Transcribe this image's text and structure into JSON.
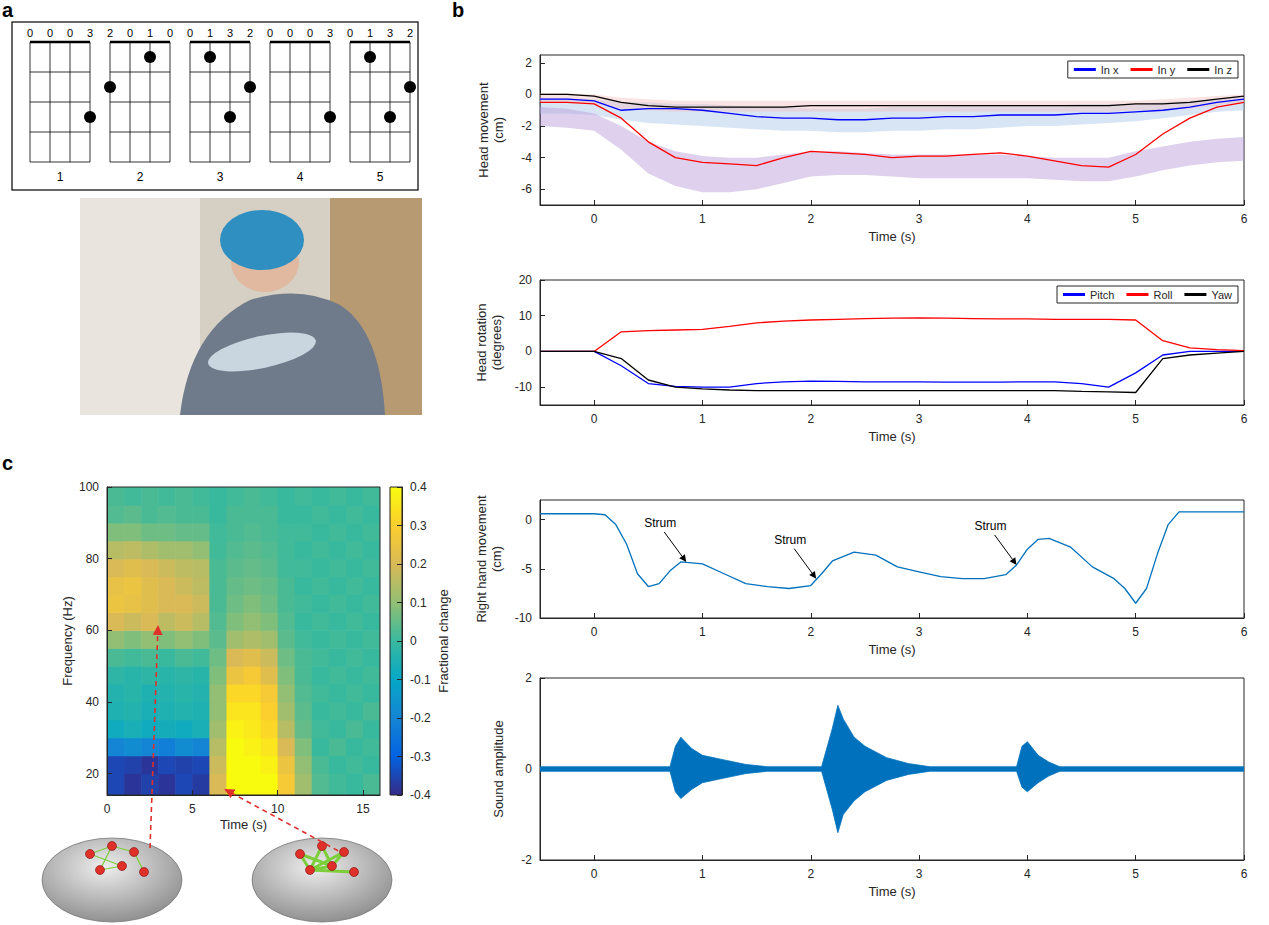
{
  "panel_a": {
    "letter": "a",
    "chords": [
      {
        "label": 1,
        "fret_numbers": [
          0,
          0,
          0,
          3
        ],
        "dots": [
          [
            4,
            3
          ]
        ]
      },
      {
        "label": 2,
        "fret_numbers": [
          2,
          0,
          1,
          0
        ],
        "dots": [
          [
            1,
            2
          ],
          [
            3,
            1
          ]
        ]
      },
      {
        "label": 3,
        "fret_numbers": [
          0,
          1,
          3,
          2
        ],
        "dots": [
          [
            2,
            1
          ],
          [
            3,
            3
          ],
          [
            4,
            2
          ]
        ]
      },
      {
        "label": 4,
        "fret_numbers": [
          0,
          0,
          0,
          3
        ],
        "dots": [
          [
            4,
            3
          ]
        ]
      },
      {
        "label": 5,
        "fret_numbers": [
          0,
          1,
          3,
          2
        ],
        "dots": [
          [
            2,
            1
          ],
          [
            3,
            3
          ],
          [
            4,
            2
          ]
        ]
      }
    ]
  },
  "panel_b": {
    "letter": "b"
  },
  "panel_c": {
    "letter": "c"
  },
  "chart_data": [
    {
      "type": "line",
      "x_label": "Time (s)",
      "y_label": "Head movement (cm)",
      "x": [
        -0.5,
        -0.25,
        0,
        0.25,
        0.5,
        0.75,
        1,
        1.25,
        1.5,
        1.75,
        2,
        2.25,
        2.5,
        2.75,
        3,
        3.25,
        3.5,
        3.75,
        4,
        4.25,
        4.5,
        4.75,
        5,
        5.25,
        5.5,
        5.75,
        6
      ],
      "xlim": [
        -0.5,
        6
      ],
      "xticks": [
        0,
        1,
        2,
        3,
        4,
        5,
        6
      ],
      "ylim": [
        -7,
        2.5
      ],
      "yticks": [
        -6,
        -4,
        -2,
        0,
        2
      ],
      "legend": "upper right",
      "series": [
        {
          "type": "band",
          "color": "#a9c6e8",
          "lower": [
            -1.2,
            -1.2,
            -1.3,
            -1.6,
            -1.8,
            -1.9,
            -2.0,
            -2.1,
            -2.2,
            -2.3,
            -2.3,
            -2.4,
            -2.4,
            -2.3,
            -2.3,
            -2.2,
            -2.2,
            -2.1,
            -2.0,
            -2.0,
            -1.9,
            -1.8,
            -1.7,
            -1.5,
            -1.3,
            -1.1,
            -1.0
          ],
          "upper": [
            -0.2,
            -0.2,
            -0.3,
            -0.5,
            -0.5,
            -0.6,
            -0.6,
            -0.7,
            -0.8,
            -0.8,
            -0.9,
            -0.9,
            -0.9,
            -0.8,
            -0.8,
            -0.8,
            -0.7,
            -0.7,
            -0.7,
            -0.7,
            -0.6,
            -0.6,
            -0.6,
            -0.5,
            -0.4,
            -0.3,
            -0.2
          ]
        },
        {
          "type": "band",
          "color": "#b99ad6",
          "lower": [
            -2.0,
            -2.1,
            -2.3,
            -3.5,
            -5.0,
            -5.8,
            -6.2,
            -6.2,
            -6.0,
            -5.6,
            -5.2,
            -5.1,
            -5.1,
            -5.2,
            -5.3,
            -5.3,
            -5.3,
            -5.3,
            -5.3,
            -5.4,
            -5.5,
            -5.5,
            -5.2,
            -4.8,
            -4.5,
            -4.3,
            -4.2
          ],
          "upper": [
            -0.8,
            -0.9,
            -1.2,
            -2.0,
            -3.0,
            -3.6,
            -3.9,
            -4.0,
            -4.0,
            -3.8,
            -3.6,
            -3.6,
            -3.7,
            -3.8,
            -3.8,
            -3.8,
            -3.8,
            -3.8,
            -3.9,
            -4.0,
            -4.0,
            -4.0,
            -3.6,
            -3.3,
            -3.0,
            -2.8,
            -2.7
          ]
        },
        {
          "type": "band",
          "color": "#f2c0c0",
          "lower": [
            -0.5,
            -0.5,
            -0.6,
            -0.9,
            -1.0,
            -1.1,
            -1.1,
            -1.1,
            -1.1,
            -1.1,
            -1.1,
            -1.1,
            -1.1,
            -1.1,
            -1.1,
            -1.1,
            -1.1,
            -1.1,
            -1.1,
            -1.1,
            -1.1,
            -1.1,
            -1.0,
            -1.0,
            -0.9,
            -0.7,
            -0.5
          ],
          "upper": [
            0.1,
            0.1,
            0,
            -0.2,
            -0.3,
            -0.4,
            -0.4,
            -0.4,
            -0.4,
            -0.4,
            -0.4,
            -0.4,
            -0.4,
            -0.4,
            -0.4,
            -0.4,
            -0.4,
            -0.4,
            -0.4,
            -0.4,
            -0.4,
            -0.4,
            -0.4,
            -0.3,
            -0.2,
            -0.1,
            0
          ]
        },
        {
          "name": "In x",
          "color": "#0000ff",
          "values": [
            -0.3,
            -0.3,
            -0.4,
            -1.0,
            -0.9,
            -0.9,
            -1.0,
            -1.2,
            -1.4,
            -1.5,
            -1.5,
            -1.6,
            -1.6,
            -1.5,
            -1.5,
            -1.4,
            -1.4,
            -1.3,
            -1.3,
            -1.3,
            -1.2,
            -1.2,
            -1.1,
            -1.0,
            -0.8,
            -0.5,
            -0.3
          ]
        },
        {
          "name": "In y",
          "color": "#ff0000",
          "values": [
            -0.5,
            -0.5,
            -0.6,
            -1.5,
            -3.0,
            -4.0,
            -4.3,
            -4.4,
            -4.5,
            -4.0,
            -3.6,
            -3.7,
            -3.8,
            -4.0,
            -3.9,
            -3.9,
            -3.8,
            -3.7,
            -3.9,
            -4.2,
            -4.5,
            -4.6,
            -3.8,
            -2.5,
            -1.5,
            -0.8,
            -0.5
          ]
        },
        {
          "name": "In z",
          "color": "#000000",
          "values": [
            0,
            0,
            -0.1,
            -0.5,
            -0.7,
            -0.8,
            -0.8,
            -0.8,
            -0.8,
            -0.8,
            -0.7,
            -0.7,
            -0.7,
            -0.7,
            -0.7,
            -0.7,
            -0.7,
            -0.7,
            -0.7,
            -0.7,
            -0.7,
            -0.7,
            -0.6,
            -0.6,
            -0.5,
            -0.3,
            -0.1
          ]
        }
      ]
    },
    {
      "type": "line",
      "x_label": "Time (s)",
      "y_label": "Head rotation (degrees)",
      "x": [
        -0.5,
        -0.25,
        0,
        0.25,
        0.5,
        0.75,
        1,
        1.25,
        1.5,
        1.75,
        2,
        2.25,
        2.5,
        2.75,
        3,
        3.25,
        3.5,
        3.75,
        4,
        4.25,
        4.5,
        4.75,
        5,
        5.25,
        5.5,
        5.75,
        6
      ],
      "xlim": [
        -0.5,
        6
      ],
      "xticks": [
        0,
        1,
        2,
        3,
        4,
        5,
        6
      ],
      "ylim": [
        -15,
        20
      ],
      "yticks": [
        -10,
        0,
        10,
        20
      ],
      "legend": "upper right",
      "series": [
        {
          "name": "Pitch",
          "color": "#0000ff",
          "values": [
            0,
            0,
            0,
            -4,
            -9,
            -9.8,
            -10,
            -10,
            -9,
            -8.5,
            -8.3,
            -8.4,
            -8.5,
            -8.5,
            -8.5,
            -8.6,
            -8.6,
            -8.6,
            -8.5,
            -8.5,
            -9.0,
            -10,
            -6,
            -1,
            0,
            0,
            0
          ]
        },
        {
          "name": "Roll",
          "color": "#ff0000",
          "values": [
            0,
            0,
            0,
            5.5,
            5.8,
            6,
            6.2,
            7,
            8,
            8.5,
            8.8,
            9,
            9.2,
            9.3,
            9.4,
            9.3,
            9.2,
            9.1,
            9.1,
            9.0,
            9.0,
            9.0,
            8.8,
            3.0,
            1.0,
            0.5,
            0.2
          ]
        },
        {
          "name": "Yaw",
          "color": "#000000",
          "values": [
            0,
            0,
            0,
            -2,
            -8,
            -10,
            -10.5,
            -10.8,
            -11,
            -11,
            -11,
            -11,
            -11,
            -11,
            -11,
            -11,
            -11,
            -11,
            -11,
            -11,
            -11.2,
            -11.3,
            -11.5,
            -2,
            -1,
            -0.5,
            0
          ]
        }
      ]
    },
    {
      "type": "line",
      "x_label": "Time (s)",
      "y_label": "Right hand movement (cm)",
      "x": [
        -0.5,
        0,
        0.1,
        0.2,
        0.3,
        0.4,
        0.5,
        0.6,
        0.7,
        0.8,
        1.0,
        1.2,
        1.4,
        1.6,
        1.8,
        2.0,
        2.1,
        2.2,
        2.4,
        2.6,
        2.8,
        3.0,
        3.2,
        3.4,
        3.6,
        3.8,
        3.9,
        4.0,
        4.1,
        4.2,
        4.4,
        4.6,
        4.8,
        4.9,
        5.0,
        5.1,
        5.2,
        5.3,
        5.4,
        5.6,
        6.0
      ],
      "xlim": [
        -0.5,
        6
      ],
      "xticks": [
        0,
        1,
        2,
        3,
        4,
        5,
        6
      ],
      "ylim": [
        -10,
        2
      ],
      "yticks": [
        -10,
        -5,
        0
      ],
      "series": [
        {
          "color": "#0072bd",
          "values": [
            0.6,
            0.6,
            0.5,
            -0.5,
            -2.5,
            -5.5,
            -6.8,
            -6.5,
            -5.2,
            -4.3,
            -4.5,
            -5.5,
            -6.5,
            -6.8,
            -7.0,
            -6.7,
            -5.5,
            -4.2,
            -3.3,
            -3.6,
            -4.8,
            -5.3,
            -5.8,
            -6.0,
            -6.0,
            -5.6,
            -4.6,
            -3.0,
            -2.0,
            -1.9,
            -2.8,
            -4.8,
            -6.0,
            -7.0,
            -8.5,
            -7.0,
            -3.5,
            -0.5,
            0.8,
            0.8,
            0.8
          ]
        }
      ],
      "annotations": [
        {
          "text": "Strum",
          "x": 0.85,
          "y": -4.3
        },
        {
          "text": "Strum",
          "x": 2.05,
          "y": -6.0
        },
        {
          "text": "Strum",
          "x": 3.9,
          "y": -4.6
        }
      ]
    },
    {
      "type": "line",
      "x_label": "Time (s)",
      "y_label": "Sound amplitude",
      "x": [
        -0.5,
        0.7,
        0.75,
        0.8,
        0.9,
        1.0,
        1.2,
        1.4,
        1.6,
        2.1,
        2.2,
        2.25,
        2.3,
        2.4,
        2.5,
        2.7,
        2.9,
        3.1,
        3.9,
        3.95,
        4.0,
        4.1,
        4.2,
        4.3,
        6.0
      ],
      "xlim": [
        -0.5,
        6
      ],
      "xticks": [
        0,
        1,
        2,
        3,
        4,
        5,
        6
      ],
      "ylim": [
        -2,
        2
      ],
      "yticks": [
        -2,
        0,
        2
      ],
      "series": [
        {
          "type": "envelope",
          "color": "#0072bd",
          "upper": [
            0.05,
            0.05,
            0.5,
            0.7,
            0.45,
            0.3,
            0.2,
            0.1,
            0.05,
            0.05,
            0.9,
            1.4,
            1.1,
            0.7,
            0.5,
            0.25,
            0.12,
            0.05,
            0.05,
            0.5,
            0.6,
            0.3,
            0.15,
            0.05,
            0.05
          ],
          "lower": [
            -0.05,
            -0.05,
            -0.5,
            -0.65,
            -0.45,
            -0.3,
            -0.2,
            -0.1,
            -0.05,
            -0.05,
            -0.9,
            -1.4,
            -1.0,
            -0.7,
            -0.5,
            -0.25,
            -0.12,
            -0.05,
            -0.05,
            -0.4,
            -0.5,
            -0.3,
            -0.15,
            -0.05,
            -0.05
          ]
        }
      ]
    },
    {
      "type": "heatmap",
      "x_label": "Time (s)",
      "y_label": "Frequency (Hz)",
      "xlim": [
        0,
        16
      ],
      "xticks": [
        0,
        5,
        10,
        15
      ],
      "ylim": [
        14,
        100
      ],
      "yticks": [
        20,
        40,
        60,
        80,
        100
      ],
      "x_edges": [
        0,
        1,
        2,
        3,
        4,
        5,
        6,
        7,
        8,
        9,
        10,
        11,
        12,
        13,
        14,
        15,
        16
      ],
      "y_edges": [
        14,
        20,
        25,
        30,
        35,
        40,
        45,
        50,
        55,
        60,
        65,
        70,
        75,
        80,
        85,
        90,
        95,
        100
      ],
      "values": [
        [
          -0.35,
          -0.38,
          -0.36,
          -0.38,
          -0.35,
          -0.37,
          0.2,
          0.4,
          0.4,
          0.4,
          0.28,
          0.12,
          0.03,
          0.01,
          0,
          0.02
        ],
        [
          -0.35,
          -0.36,
          -0.38,
          -0.35,
          -0.36,
          -0.35,
          0.18,
          0.4,
          0.4,
          0.38,
          0.25,
          0.1,
          0.02,
          0,
          0.01,
          0
        ],
        [
          -0.2,
          -0.18,
          -0.2,
          -0.22,
          -0.18,
          -0.2,
          0.15,
          0.4,
          0.38,
          0.35,
          0.2,
          0.08,
          0,
          0.02,
          0,
          0.01
        ],
        [
          -0.08,
          -0.06,
          -0.08,
          -0.07,
          -0.08,
          -0.06,
          0.12,
          0.38,
          0.36,
          0.32,
          0.15,
          0.05,
          0.01,
          0,
          0.02,
          0
        ],
        [
          -0.05,
          -0.04,
          -0.06,
          -0.05,
          -0.04,
          -0.05,
          0.1,
          0.35,
          0.35,
          0.3,
          0.12,
          0.04,
          0,
          0.01,
          0,
          0.02
        ],
        [
          -0.04,
          -0.03,
          -0.05,
          -0.04,
          -0.03,
          -0.04,
          0.1,
          0.32,
          0.32,
          0.28,
          0.1,
          0.03,
          0.01,
          0,
          0.01,
          0
        ],
        [
          -0.02,
          -0.03,
          -0.02,
          -0.03,
          -0.02,
          -0.03,
          0.08,
          0.25,
          0.28,
          0.22,
          0.08,
          0.02,
          0,
          0.01,
          0,
          0.01
        ],
        [
          0.02,
          0.01,
          0.02,
          0.0,
          0.02,
          0.01,
          0.06,
          0.2,
          0.22,
          0.18,
          0.06,
          0.02,
          0.01,
          0,
          0.01,
          0
        ],
        [
          0.1,
          0.08,
          0.1,
          0.08,
          0.1,
          0.08,
          0.04,
          0.12,
          0.14,
          0.12,
          0.04,
          0.01,
          0,
          0.01,
          0,
          0.01
        ],
        [
          0.2,
          0.18,
          0.2,
          0.16,
          0.18,
          0.15,
          0.03,
          0.08,
          0.1,
          0.08,
          0.03,
          0,
          0.01,
          0,
          0.01,
          0
        ],
        [
          0.25,
          0.24,
          0.22,
          0.2,
          0.2,
          0.18,
          0.02,
          0.06,
          0.08,
          0.06,
          0.02,
          0.01,
          0,
          0.01,
          0,
          0.01
        ],
        [
          0.24,
          0.25,
          0.22,
          0.2,
          0.18,
          0.16,
          0.02,
          0.05,
          0.06,
          0.05,
          0.02,
          0,
          0.01,
          0,
          0.01,
          0
        ],
        [
          0.2,
          0.22,
          0.2,
          0.18,
          0.16,
          0.15,
          0.02,
          0.04,
          0.05,
          0.04,
          0.01,
          0.01,
          0,
          0.01,
          0,
          0.01
        ],
        [
          0.15,
          0.16,
          0.14,
          0.12,
          0.12,
          0.1,
          0.01,
          0.03,
          0.04,
          0.03,
          0.01,
          0,
          0.01,
          0,
          0.01,
          0
        ],
        [
          0.08,
          0.08,
          0.06,
          0.06,
          0.05,
          0.05,
          0.01,
          0.02,
          0.03,
          0.02,
          0.01,
          0.01,
          0,
          0.01,
          0,
          0.01
        ],
        [
          0.03,
          0.04,
          0.02,
          0.03,
          0.02,
          0.02,
          0,
          0.02,
          0.02,
          0.02,
          0,
          0,
          0.01,
          0,
          0.01,
          0
        ],
        [
          0.02,
          0.01,
          0.02,
          0.01,
          0.02,
          0.01,
          0,
          0.01,
          0.02,
          0.01,
          0,
          0.01,
          0,
          0.01,
          0,
          0.01
        ]
      ],
      "color_range": [
        -0.4,
        0.4
      ],
      "color_ticks": [
        -0.4,
        -0.3,
        -0.2,
        -0.1,
        0,
        0.1,
        0.2,
        0.3,
        0.4
      ],
      "colorbar_label": "Fractional change"
    }
  ]
}
